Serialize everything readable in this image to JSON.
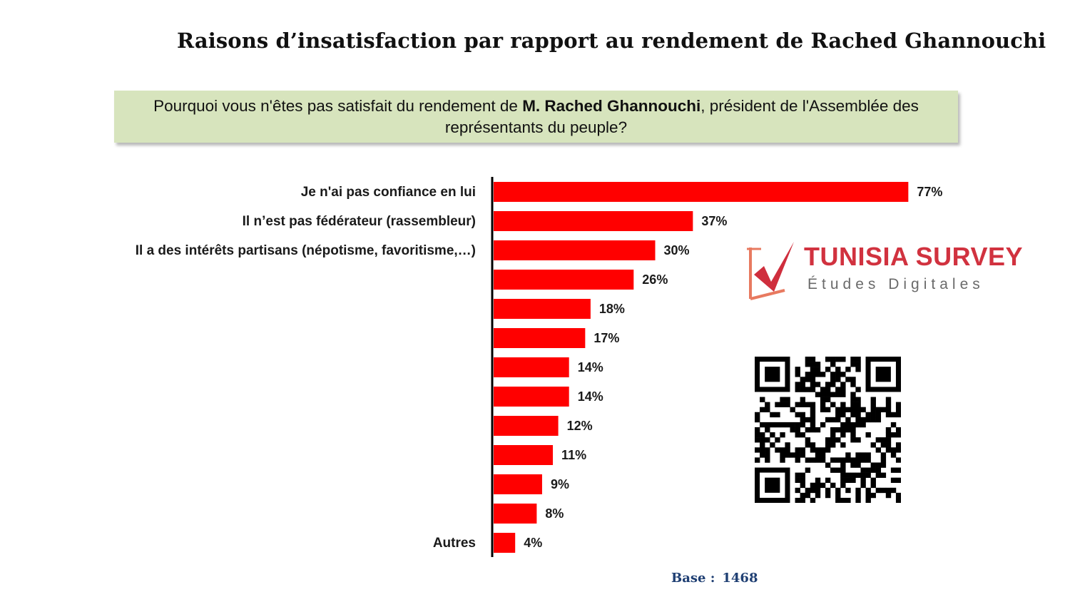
{
  "title": "Raisons d’insatisfaction par rapport au rendement  de Rached Ghannouchi",
  "question": {
    "before": "Pourquoi vous n'êtes pas satisfait du rendement de ",
    "bold": "M. Rached Ghannouchi",
    "after": ", président de l'Assemblée des représentants du peuple?"
  },
  "logo": {
    "name": "TUNISIA SURVEY",
    "subtitle": "Études Digitales",
    "color": "#d1323f"
  },
  "qr": {
    "icon": "qr-code-icon"
  },
  "base": {
    "label": "Base :",
    "value": "1468"
  },
  "colors": {
    "bar": "#ff0000",
    "axis": "#000000",
    "question_bg": "#d7e4bd",
    "base_text": "#1f3f73"
  },
  "chart_data": {
    "type": "bar",
    "orientation": "horizontal",
    "categories": [
      "Je n'ai pas confiance en lui",
      "Il n’est pas fédérateur (rassembleur)",
      "Il a des intérêts partisans (népotisme, favoritisme,…)",
      "",
      "",
      "",
      "",
      "",
      "",
      "",
      "",
      "",
      "Autres"
    ],
    "values": [
      77,
      37,
      30,
      26,
      18,
      17,
      14,
      14,
      12,
      11,
      9,
      8,
      4
    ],
    "value_labels": [
      "77%",
      "37%",
      "30%",
      "26%",
      "18%",
      "17%",
      "14%",
      "14%",
      "12%",
      "11%",
      "9%",
      "8%",
      "4%"
    ],
    "unit": "%",
    "xlim": [
      0,
      100
    ],
    "grid": false,
    "legend": "none"
  }
}
